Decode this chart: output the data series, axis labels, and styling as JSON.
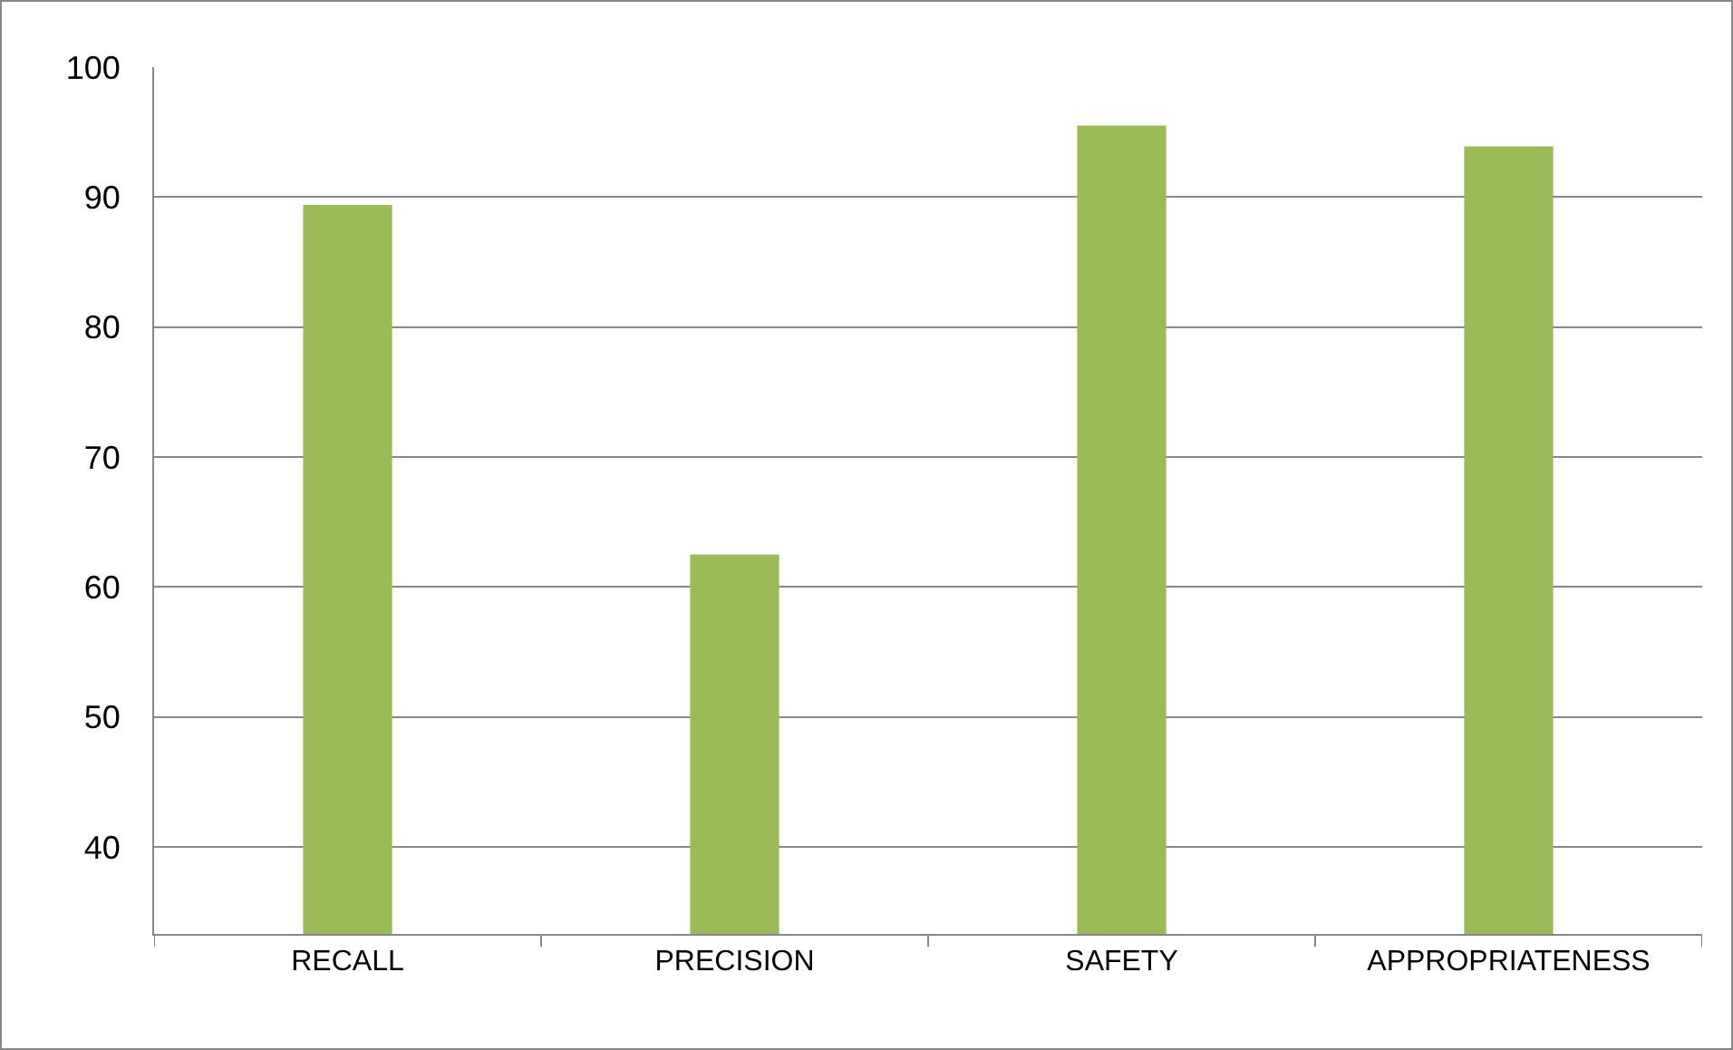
{
  "chart_data": {
    "type": "bar",
    "categories": [
      "RECALL",
      "PRECISION",
      "SAFETY",
      "APPROPRIATENESS"
    ],
    "values": [
      89.4,
      62.5,
      95.5,
      93.9
    ],
    "color": "#9bbb59",
    "ylim": [
      33.3,
      100
    ],
    "yticks": [
      40,
      50,
      60,
      70,
      80,
      90,
      100
    ],
    "grid": "y"
  }
}
